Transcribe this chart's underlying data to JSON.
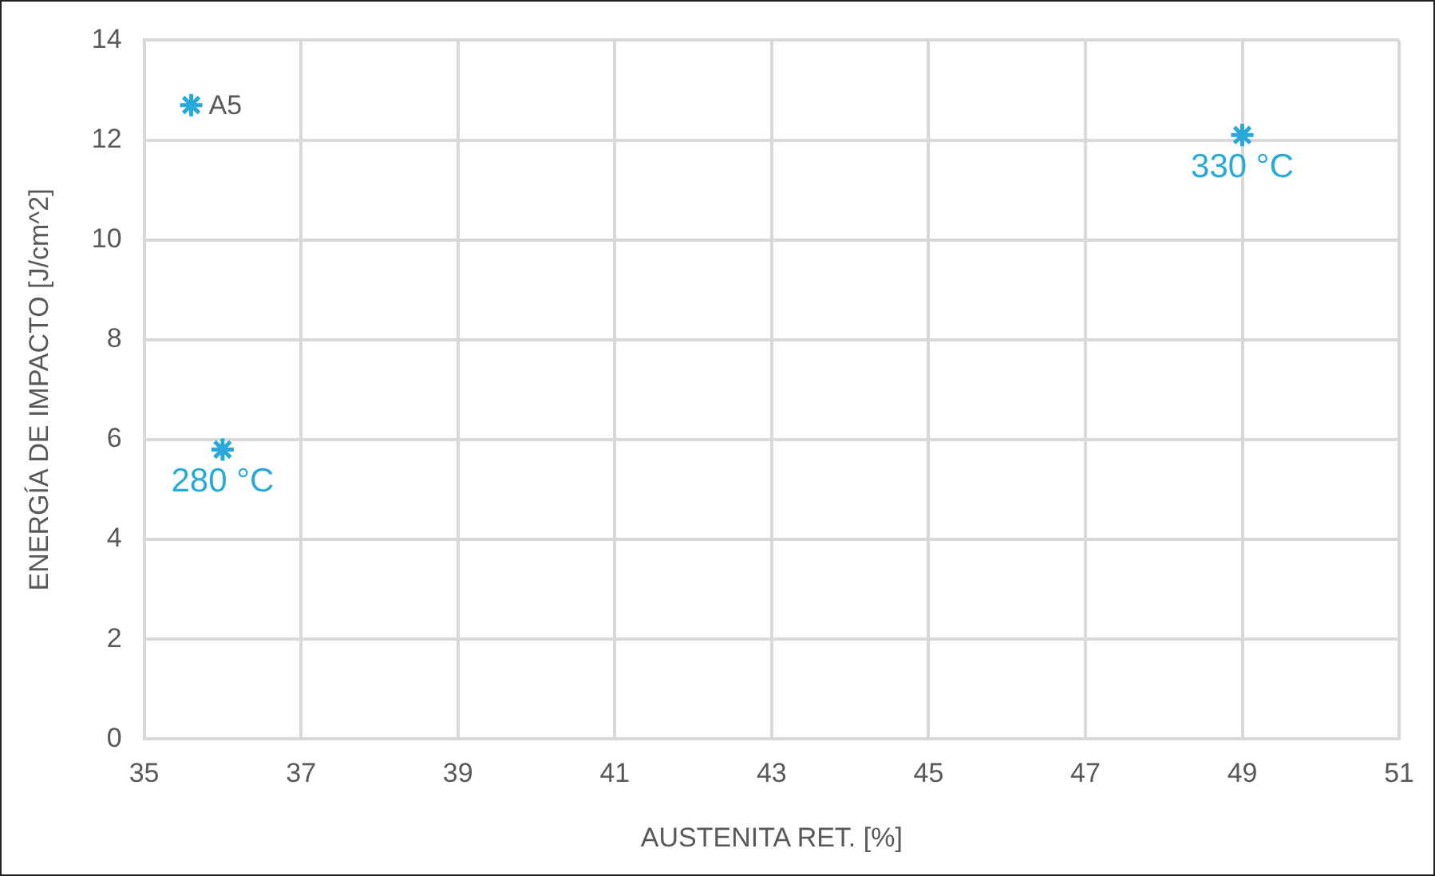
{
  "chart_data": {
    "type": "scatter",
    "xlabel": "AUSTENITA RET. [%]",
    "ylabel": "ENERGÍA DE IMPACTO [J/cm^2]",
    "xlim": [
      35,
      51
    ],
    "xticks": [
      35,
      37,
      39,
      41,
      43,
      45,
      47,
      49,
      51
    ],
    "ylim": [
      0,
      14
    ],
    "yticks": [
      0,
      2,
      4,
      6,
      8,
      10,
      12,
      14
    ],
    "grid": true,
    "legend": false,
    "marker": "cross",
    "series": [
      {
        "name": "A5",
        "color": "#29a9d9",
        "x": [
          35.6
        ],
        "values": [
          12.7
        ]
      },
      {
        "color": "#29a9d9",
        "x": [
          36.0,
          49.0
        ],
        "values": [
          5.8,
          12.1
        ]
      }
    ],
    "annotations": [
      {
        "text": "280 °C",
        "x": 36.0,
        "y": 5.8
      },
      {
        "text": "330 °C",
        "x": 49.0,
        "y": 12.1
      }
    ]
  }
}
